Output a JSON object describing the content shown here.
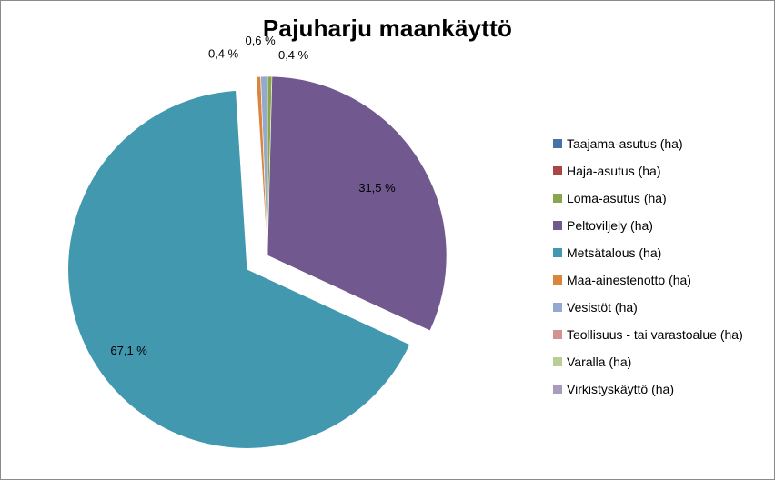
{
  "chart_data": {
    "type": "pie",
    "title": "Pajuharju maankäyttö",
    "categories": [
      "Taajama-asutus (ha)",
      "Haja-asutus (ha)",
      "Loma-asutus (ha)",
      "Peltoviljely (ha)",
      "Metsätalous (ha)",
      "Maa-ainestenotto (ha)",
      "Vesistöt (ha)",
      "Teollisuus - tai varastoalue (ha)",
      "Varalla (ha)",
      "Virkistyskäyttö (ha)"
    ],
    "values": [
      0.0,
      0.0,
      0.4,
      31.5,
      67.1,
      0.4,
      0.6,
      0.0,
      0.0,
      0.0
    ],
    "data_labels": [
      "",
      "",
      "0,4 %",
      "31,5 %",
      "67,1 %",
      "0,4 %",
      "0,6 %",
      "",
      "",
      ""
    ],
    "colors": [
      "#4572a7",
      "#aa4643",
      "#89a54e",
      "#71588f",
      "#4198af",
      "#db843d",
      "#93a9cf",
      "#d19392",
      "#b9cd96",
      "#a99bbd"
    ],
    "exploded": "Metsätalous (ha)",
    "legend_position": "right"
  }
}
